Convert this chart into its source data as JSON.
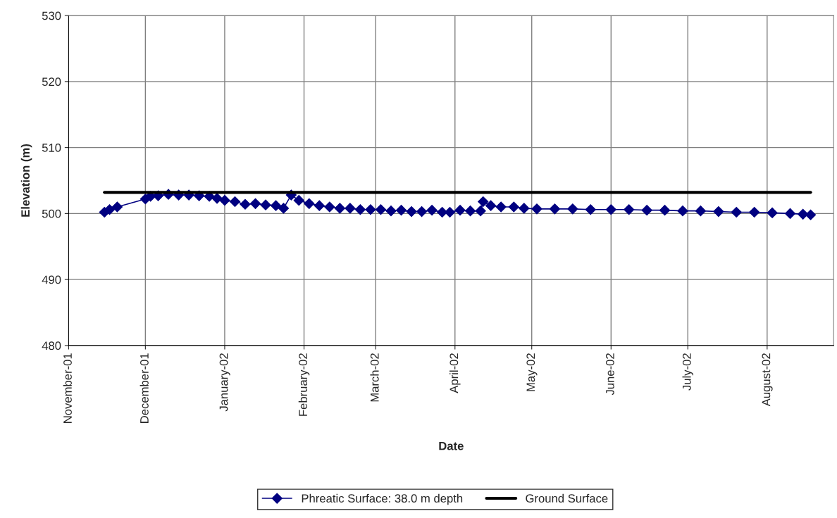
{
  "chart_data": {
    "type": "line",
    "xlabel": "Date",
    "ylabel": "Elevation (m)",
    "xlim": [
      "2001-11-01",
      "2002-08-27"
    ],
    "ylim": [
      480,
      530
    ],
    "yticks": [
      480,
      490,
      500,
      510,
      520,
      530
    ],
    "xticks": [
      {
        "value": "2001-11-01",
        "label": "November-01"
      },
      {
        "value": "2001-12-01",
        "label": "December-01"
      },
      {
        "value": "2002-01-01",
        "label": "January-02"
      },
      {
        "value": "2002-02-01",
        "label": "February-02"
      },
      {
        "value": "2002-03-01",
        "label": "March-02"
      },
      {
        "value": "2002-04-01",
        "label": "April-02"
      },
      {
        "value": "2002-05-01",
        "label": "May-02"
      },
      {
        "value": "2002-06-01",
        "label": "June-02"
      },
      {
        "value": "2002-07-01",
        "label": "July-02"
      },
      {
        "value": "2002-08-01",
        "label": "August-02"
      }
    ],
    "grid": true,
    "legend": "bottom",
    "series": [
      {
        "name": "Phreatic Surface: 38.0 m depth",
        "color": "#000080",
        "marker": "diamond",
        "line_style": "solid",
        "x": [
          "2001-11-15",
          "2001-11-17",
          "2001-11-20",
          "2001-12-01",
          "2001-12-03",
          "2001-12-06",
          "2001-12-10",
          "2001-12-14",
          "2001-12-18",
          "2001-12-22",
          "2001-12-26",
          "2001-12-29",
          "2002-01-01",
          "2002-01-05",
          "2002-01-09",
          "2002-01-13",
          "2002-01-17",
          "2002-01-21",
          "2002-01-24",
          "2002-01-27",
          "2002-01-30",
          "2002-02-03",
          "2002-02-07",
          "2002-02-11",
          "2002-02-15",
          "2002-02-19",
          "2002-02-23",
          "2002-02-27",
          "2002-03-03",
          "2002-03-07",
          "2002-03-11",
          "2002-03-15",
          "2002-03-19",
          "2002-03-23",
          "2002-03-27",
          "2002-03-30",
          "2002-04-03",
          "2002-04-07",
          "2002-04-11",
          "2002-04-12",
          "2002-04-15",
          "2002-04-19",
          "2002-04-24",
          "2002-04-28",
          "2002-05-03",
          "2002-05-10",
          "2002-05-17",
          "2002-05-24",
          "2002-06-01",
          "2002-06-08",
          "2002-06-15",
          "2002-06-22",
          "2002-06-29",
          "2002-07-06",
          "2002-07-13",
          "2002-07-20",
          "2002-07-27",
          "2002-08-03",
          "2002-08-10",
          "2002-08-15",
          "2002-08-18"
        ],
        "values": [
          500.2,
          500.6,
          501.0,
          502.2,
          502.6,
          502.7,
          502.9,
          502.8,
          502.8,
          502.7,
          502.6,
          502.3,
          502.0,
          501.8,
          501.4,
          501.5,
          501.3,
          501.2,
          500.8,
          502.8,
          502.0,
          501.5,
          501.2,
          501.0,
          500.8,
          500.8,
          500.6,
          500.6,
          500.6,
          500.4,
          500.5,
          500.3,
          500.3,
          500.5,
          500.2,
          500.2,
          500.5,
          500.4,
          500.4,
          501.8,
          501.2,
          501.0,
          501.0,
          500.8,
          500.7,
          500.7,
          500.7,
          500.6,
          500.6,
          500.6,
          500.5,
          500.5,
          500.4,
          500.4,
          500.3,
          500.2,
          500.2,
          500.1,
          500.0,
          499.9,
          499.8
        ]
      },
      {
        "name": "Ground Surface",
        "color": "#000000",
        "marker": "none",
        "line_style": "solid",
        "x": [
          "2001-11-15",
          "2002-08-18"
        ],
        "values": [
          503.2,
          503.2
        ]
      }
    ]
  }
}
